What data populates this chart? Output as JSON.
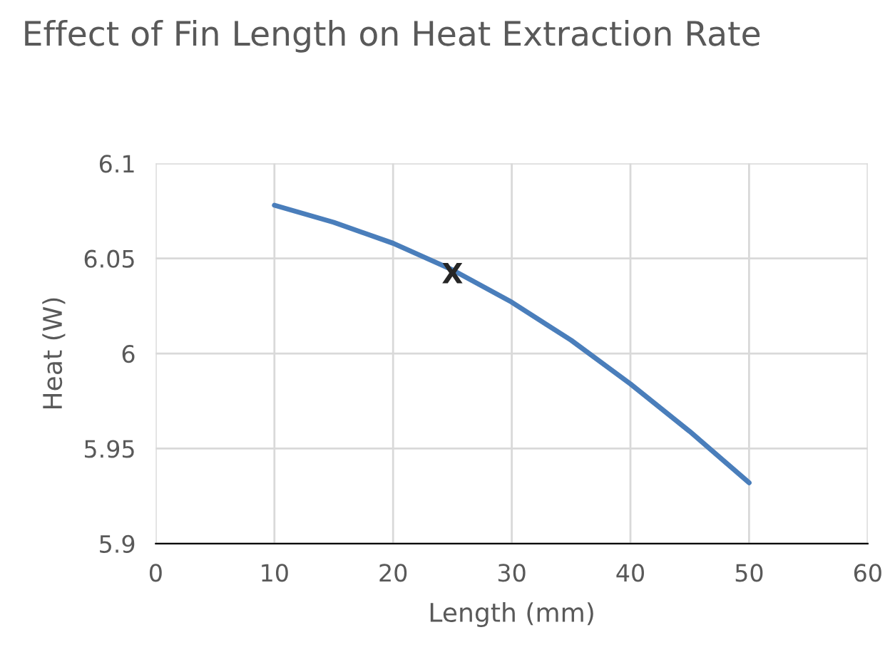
{
  "chart_data": {
    "type": "line",
    "title": "Effect of Fin Length on Heat Extraction Rate",
    "xlabel": "Length (mm)",
    "ylabel": "Heat (W)",
    "series": [
      {
        "color": "#4a7ebb",
        "x": [
          10,
          15,
          20,
          25,
          30,
          35,
          40,
          45,
          50
        ],
        "values": [
          6.078,
          6.069,
          6.058,
          6.044,
          6.027,
          6.007,
          5.984,
          5.959,
          5.932
        ]
      }
    ],
    "annotations": [
      {
        "text": "X",
        "x": 25,
        "y": 6.041
      }
    ],
    "xlim": [
      0,
      60
    ],
    "xticks": [
      0,
      10,
      20,
      30,
      40,
      50,
      60
    ],
    "ylim": [
      5.9,
      6.1
    ],
    "yticks": [
      5.9,
      5.95,
      6,
      6.05,
      6.1
    ],
    "grid": true,
    "marker": "none",
    "line_style": "solid"
  }
}
